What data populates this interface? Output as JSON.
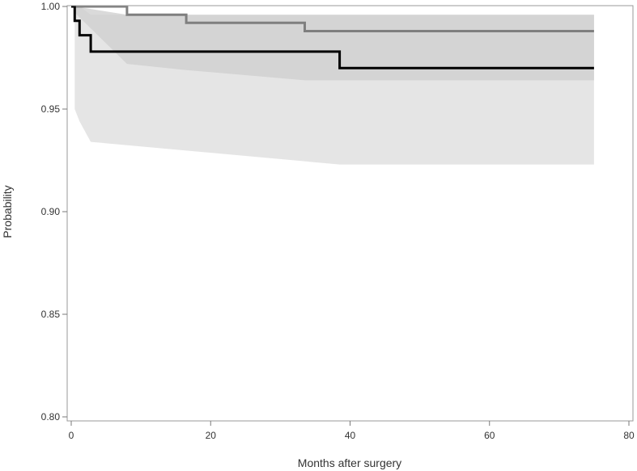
{
  "chart_data": {
    "type": "line",
    "title": "",
    "xlabel": "Months after surgery",
    "ylabel": "Probability",
    "xlim": [
      0,
      80
    ],
    "ylim": [
      0.8,
      1.0
    ],
    "xticks": [
      0,
      20,
      40,
      60,
      80
    ],
    "yticks": [
      0.8,
      0.85,
      0.9,
      0.95,
      1.0
    ],
    "ytick_labels": [
      "0.80",
      "0.85",
      "0.90",
      "0.95",
      "1.00"
    ],
    "xtick_labels": [
      "0",
      "20",
      "40",
      "60",
      "80"
    ],
    "grid": false,
    "legend": "none",
    "series": [
      {
        "color": "#7f7f7f",
        "step": true,
        "x": [
          0,
          8,
          16.5,
          33.5,
          75
        ],
        "y": [
          1.0,
          0.996,
          0.992,
          0.988,
          0.988
        ],
        "band": {
          "color": "#bcbcbc",
          "x": [
            0.5,
            8,
            16.5,
            33.5,
            75
          ],
          "lower": [
            0.997,
            0.972,
            0.969,
            0.964,
            0.964
          ],
          "upper": [
            1.0,
            0.996,
            0.996,
            0.996,
            0.996
          ]
        }
      },
      {
        "color": "#000000",
        "step": true,
        "x": [
          0,
          0.5,
          1.2,
          2.8,
          38.5,
          75
        ],
        "y": [
          1.0,
          0.993,
          0.986,
          0.978,
          0.97,
          0.97
        ],
        "band": {
          "color": "#d0d0d0",
          "x": [
            0.5,
            1.2,
            2.8,
            38.5,
            75
          ],
          "lower": [
            0.95,
            0.944,
            0.934,
            0.923,
            0.923
          ],
          "upper": [
            1.0,
            1.0,
            0.996,
            0.996,
            0.996
          ]
        }
      }
    ]
  }
}
